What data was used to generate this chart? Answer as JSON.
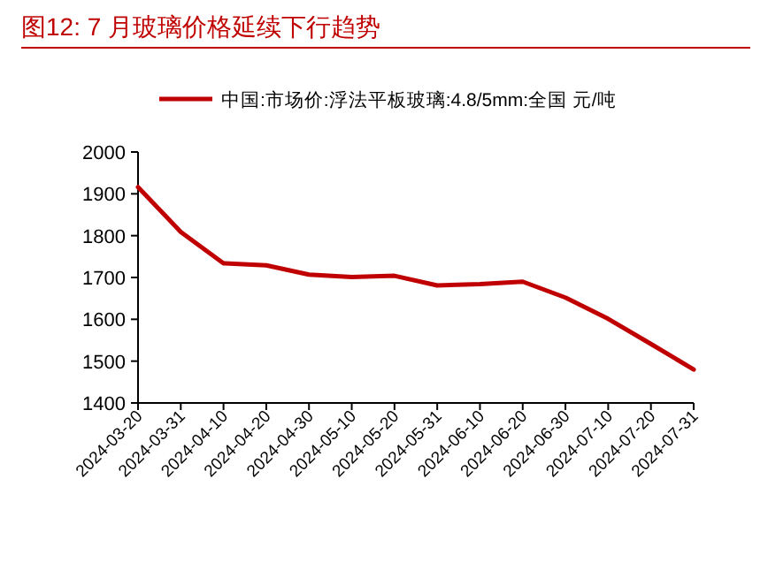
{
  "chart_data": {
    "type": "line",
    "title": "图12:  7 月玻璃价格延续下行趋势",
    "categories": [
      "2024-03-20",
      "2024-03-31",
      "2024-04-10",
      "2024-04-20",
      "2024-04-30",
      "2024-05-10",
      "2024-05-20",
      "2024-05-31",
      "2024-06-10",
      "2024-06-20",
      "2024-06-30",
      "2024-07-10",
      "2024-07-20",
      "2024-07-31"
    ],
    "series": [
      {
        "name": "中国:市场价:浮法平板玻璃:4.8/5mm:全国 元/吨",
        "color": "#c00000",
        "values": [
          1916,
          1809,
          1734,
          1729,
          1707,
          1701,
          1704,
          1681,
          1684,
          1690,
          1652,
          1601,
          1541,
          1480
        ]
      }
    ],
    "ylim": [
      1400,
      2000
    ],
    "yticks": [
      1400,
      1500,
      1600,
      1700,
      1800,
      1900,
      2000
    ],
    "legend": "top",
    "grid": false,
    "marker": "none",
    "line_style": "solid"
  }
}
